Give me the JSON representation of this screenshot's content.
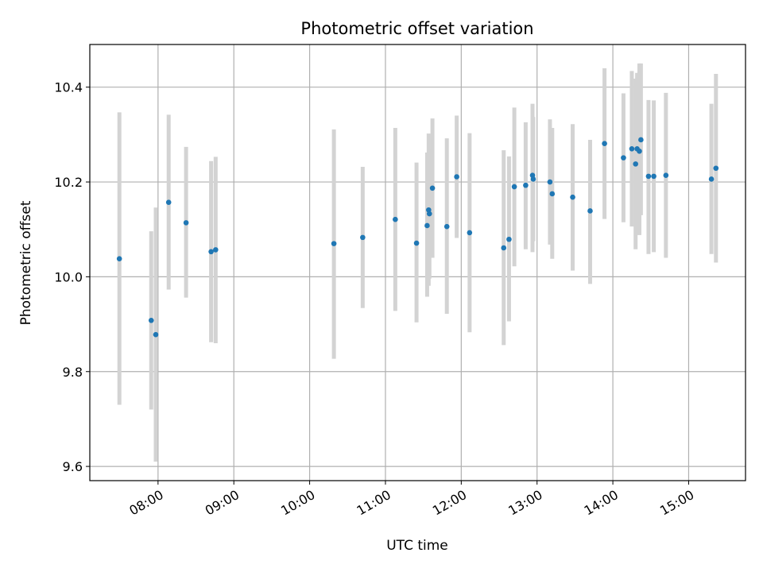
{
  "chart_data": {
    "type": "scatter",
    "title": "Photometric offset variation",
    "xlabel": "UTC time",
    "ylabel": "Photometric offset",
    "x_unit": "hours",
    "xlim": [
      7.1,
      15.75
    ],
    "ylim": [
      9.57,
      10.49
    ],
    "grid": true,
    "x_ticks": [
      {
        "value": 8,
        "label": "08:00"
      },
      {
        "value": 9,
        "label": "09:00"
      },
      {
        "value": 10,
        "label": "10:00"
      },
      {
        "value": 11,
        "label": "11:00"
      },
      {
        "value": 12,
        "label": "12:00"
      },
      {
        "value": 13,
        "label": "13:00"
      },
      {
        "value": 14,
        "label": "14:00"
      },
      {
        "value": 15,
        "label": "15:00"
      }
    ],
    "y_ticks": [
      {
        "value": 9.6,
        "label": "9.6"
      },
      {
        "value": 9.8,
        "label": "9.8"
      },
      {
        "value": 10.0,
        "label": "10.0"
      },
      {
        "value": 10.2,
        "label": "10.2"
      },
      {
        "value": 10.4,
        "label": "10.4"
      }
    ],
    "colors": {
      "point": "#1f77b4",
      "errorbar": "#d3d3d3",
      "grid": "#b0b0b0"
    },
    "points": [
      {
        "x": 7.49,
        "y": 10.038,
        "lo": 9.73,
        "hi": 10.347
      },
      {
        "x": 7.91,
        "y": 9.908,
        "lo": 9.72,
        "hi": 10.096
      },
      {
        "x": 7.97,
        "y": 9.878,
        "lo": 9.61,
        "hi": 10.146
      },
      {
        "x": 8.14,
        "y": 10.157,
        "lo": 9.973,
        "hi": 10.342
      },
      {
        "x": 8.37,
        "y": 10.114,
        "lo": 9.956,
        "hi": 10.274
      },
      {
        "x": 8.7,
        "y": 10.053,
        "lo": 9.862,
        "hi": 10.244
      },
      {
        "x": 8.76,
        "y": 10.057,
        "lo": 9.86,
        "hi": 10.253
      },
      {
        "x": 10.32,
        "y": 10.07,
        "lo": 9.827,
        "hi": 10.311
      },
      {
        "x": 10.7,
        "y": 10.083,
        "lo": 9.934,
        "hi": 10.232
      },
      {
        "x": 11.13,
        "y": 10.121,
        "lo": 9.928,
        "hi": 10.314
      },
      {
        "x": 11.41,
        "y": 10.071,
        "lo": 9.904,
        "hi": 10.241
      },
      {
        "x": 11.55,
        "y": 10.108,
        "lo": 9.958,
        "hi": 10.262
      },
      {
        "x": 11.57,
        "y": 10.141,
        "lo": 9.981,
        "hi": 10.302
      },
      {
        "x": 11.58,
        "y": 10.133,
        "lo": 9.996,
        "hi": 10.271
      },
      {
        "x": 11.62,
        "y": 10.187,
        "lo": 10.04,
        "hi": 10.334
      },
      {
        "x": 11.81,
        "y": 10.106,
        "lo": 9.922,
        "hi": 10.292
      },
      {
        "x": 11.94,
        "y": 10.211,
        "lo": 10.082,
        "hi": 10.34
      },
      {
        "x": 12.11,
        "y": 10.093,
        "lo": 9.883,
        "hi": 10.303
      },
      {
        "x": 12.56,
        "y": 10.061,
        "lo": 9.856,
        "hi": 10.267
      },
      {
        "x": 12.63,
        "y": 10.079,
        "lo": 9.906,
        "hi": 10.254
      },
      {
        "x": 12.7,
        "y": 10.19,
        "lo": 10.022,
        "hi": 10.357
      },
      {
        "x": 12.85,
        "y": 10.193,
        "lo": 10.058,
        "hi": 10.326
      },
      {
        "x": 12.94,
        "y": 10.214,
        "lo": 10.052,
        "hi": 10.365
      },
      {
        "x": 12.95,
        "y": 10.206,
        "lo": 10.075,
        "hi": 10.337
      },
      {
        "x": 13.17,
        "y": 10.2,
        "lo": 10.068,
        "hi": 10.332
      },
      {
        "x": 13.2,
        "y": 10.175,
        "lo": 10.038,
        "hi": 10.314
      },
      {
        "x": 13.47,
        "y": 10.168,
        "lo": 10.013,
        "hi": 10.322
      },
      {
        "x": 13.7,
        "y": 10.139,
        "lo": 9.985,
        "hi": 10.289
      },
      {
        "x": 13.89,
        "y": 10.281,
        "lo": 10.122,
        "hi": 10.44
      },
      {
        "x": 14.14,
        "y": 10.251,
        "lo": 10.115,
        "hi": 10.387
      },
      {
        "x": 14.25,
        "y": 10.27,
        "lo": 10.106,
        "hi": 10.434
      },
      {
        "x": 14.3,
        "y": 10.238,
        "lo": 10.058,
        "hi": 10.418
      },
      {
        "x": 14.32,
        "y": 10.27,
        "lo": 10.109,
        "hi": 10.43
      },
      {
        "x": 14.35,
        "y": 10.265,
        "lo": 10.088,
        "hi": 10.45
      },
      {
        "x": 14.37,
        "y": 10.289,
        "lo": 10.13,
        "hi": 10.45
      },
      {
        "x": 14.47,
        "y": 10.212,
        "lo": 10.048,
        "hi": 10.373
      },
      {
        "x": 14.54,
        "y": 10.212,
        "lo": 10.052,
        "hi": 10.372
      },
      {
        "x": 14.7,
        "y": 10.214,
        "lo": 10.04,
        "hi": 10.388
      },
      {
        "x": 15.3,
        "y": 10.206,
        "lo": 10.048,
        "hi": 10.365
      },
      {
        "x": 15.36,
        "y": 10.229,
        "lo": 10.03,
        "hi": 10.428
      }
    ]
  }
}
